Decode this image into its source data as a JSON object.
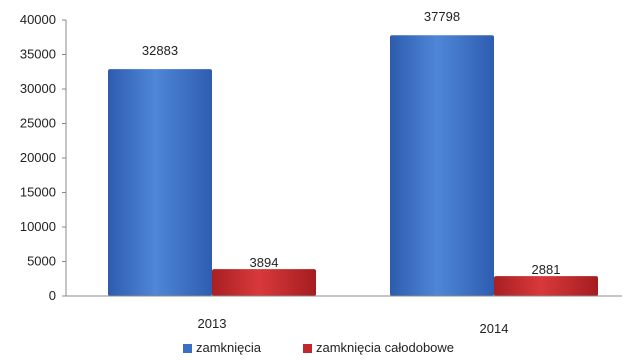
{
  "chart_data": {
    "type": "bar",
    "title": "",
    "xlabel": "",
    "ylabel": "",
    "categories": [
      "2013",
      "2014"
    ],
    "series": [
      {
        "name": "zamknięcia",
        "values": [
          32883,
          37798
        ],
        "color": "#3b6fc4"
      },
      {
        "name": "zamknięcia całodobowe",
        "values": [
          3894,
          2881
        ],
        "color": "#c0282b"
      }
    ],
    "ylim": [
      0,
      40000
    ],
    "yticks": [
      0,
      5000,
      10000,
      15000,
      20000,
      25000,
      30000,
      35000,
      40000
    ],
    "data_labels": [
      [
        "32883",
        "37798"
      ],
      [
        "3894",
        "2881"
      ]
    ],
    "grid": false,
    "legend_position": "bottom"
  }
}
